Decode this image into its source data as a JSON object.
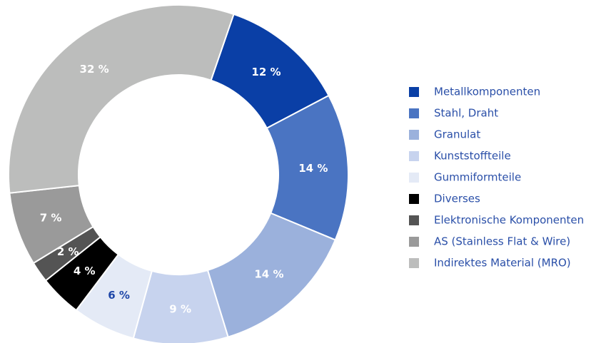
{
  "chart_data": {
    "type": "donut",
    "categories": [
      "Metallkomponenten",
      "Stahl, Draht",
      "Granulat",
      "Kunststoffteile",
      "Gummiformteile",
      "Diverses",
      "Elektronische Komponenten",
      "AS (Stainless Flat & Wire)",
      "Indirektes Material (MRO)"
    ],
    "values": [
      12,
      14,
      14,
      9,
      6,
      4,
      2,
      7,
      32
    ],
    "value_labels": [
      "12 %",
      "14 %",
      "14 %",
      "9 %",
      "6 %",
      "4 %",
      "2 %",
      "7 %",
      "32 %"
    ],
    "colors": [
      "#0a3fa6",
      "#4a74c2",
      "#9bb1dc",
      "#c7d3ee",
      "#e4eaf6",
      "#000000",
      "#545454",
      "#9a9a9a",
      "#bcbdbc"
    ],
    "label_colors": [
      "#ffffff",
      "#ffffff",
      "#ffffff",
      "#ffffff",
      "#1f47a8",
      "#ffffff",
      "#ffffff",
      "#ffffff",
      "#ffffff"
    ],
    "legend": "right"
  }
}
